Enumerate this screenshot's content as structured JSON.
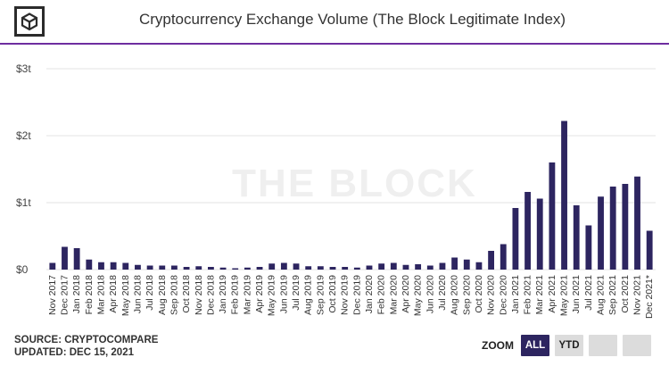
{
  "header": {
    "title": "Cryptocurrency Exchange Volume (The Block Legitimate Index)"
  },
  "watermark": "THE BLOCK",
  "footer": {
    "source": "SOURCE: CRYPTOCOMPARE",
    "updated": "UPDATED: DEC 15, 2021"
  },
  "zoom": {
    "label": "ZOOM",
    "buttons": [
      "ALL",
      "YTD",
      "",
      ""
    ],
    "active": "ALL"
  },
  "colors": {
    "bar": "#2d2560",
    "accent": "#6e2da0",
    "grid": "#e3e3e3",
    "watermark": "#efefef"
  },
  "chart_data": {
    "type": "bar",
    "title": "Cryptocurrency Exchange Volume (The Block Legitimate Index)",
    "xlabel": "",
    "ylabel": "",
    "ylim": [
      0,
      3
    ],
    "yticks": [
      0,
      1,
      2,
      3
    ],
    "ytick_labels": [
      "$0",
      "$1t",
      "$2t",
      "$3t"
    ],
    "grid": true,
    "categories": [
      "Nov 2017",
      "Dec 2017",
      "Jan 2018",
      "Feb 2018",
      "Mar 2018",
      "Apr 2018",
      "May 2018",
      "Jun 2018",
      "Jul 2018",
      "Aug 2018",
      "Sep 2018",
      "Oct 2018",
      "Nov 2018",
      "Dec 2018",
      "Jan 2019",
      "Feb 2019",
      "Mar 2019",
      "Apr 2019",
      "May 2019",
      "Jun 2019",
      "Jul 2019",
      "Aug 2019",
      "Sep 2019",
      "Oct 2019",
      "Nov 2019",
      "Dec 2019",
      "Jan 2020",
      "Feb 2020",
      "Mar 2020",
      "Apr 2020",
      "May 2020",
      "Jun 2020",
      "Jul 2020",
      "Aug 2020",
      "Sep 2020",
      "Oct 2020",
      "Nov 2020",
      "Dec 2020",
      "Jan 2021",
      "Feb 2021",
      "Mar 2021",
      "Apr 2021",
      "May 2021",
      "Jun 2021",
      "Jul 2021",
      "Aug 2021",
      "Sep 2021",
      "Oct 2021",
      "Nov 2021",
      "Dec 2021*"
    ],
    "values": [
      0.1,
      0.34,
      0.32,
      0.15,
      0.11,
      0.11,
      0.1,
      0.07,
      0.06,
      0.06,
      0.06,
      0.04,
      0.05,
      0.04,
      0.03,
      0.02,
      0.03,
      0.04,
      0.09,
      0.1,
      0.09,
      0.05,
      0.05,
      0.04,
      0.04,
      0.03,
      0.06,
      0.09,
      0.1,
      0.07,
      0.08,
      0.06,
      0.1,
      0.18,
      0.15,
      0.11,
      0.28,
      0.38,
      0.92,
      1.16,
      1.06,
      1.6,
      2.22,
      0.96,
      0.66,
      1.09,
      1.24,
      1.28,
      1.39,
      0.58
    ]
  }
}
